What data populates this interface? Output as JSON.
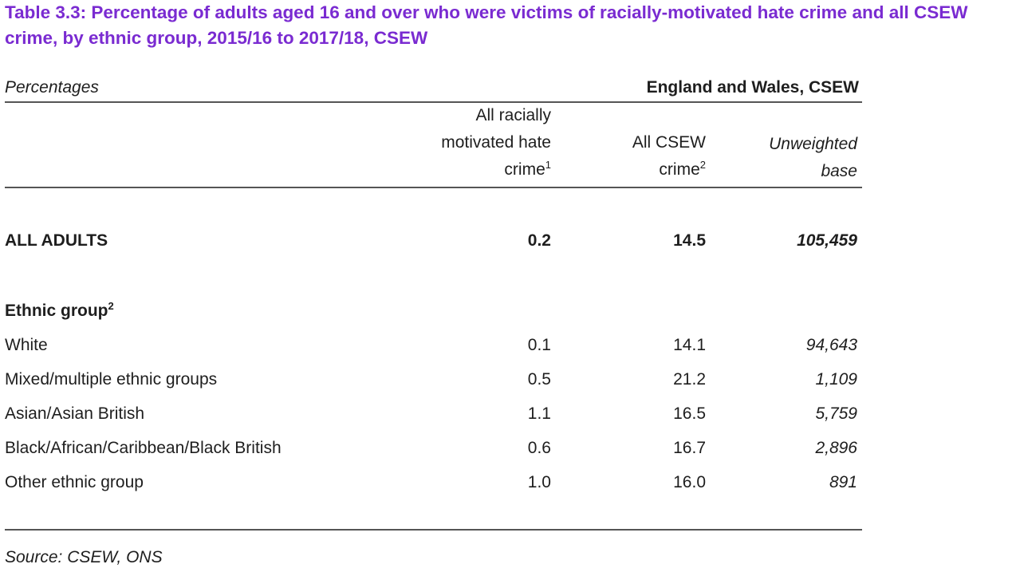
{
  "title": "Table 3.3: Percentage of adults aged 16 and over who were victims of racially-motivated hate crime and all CSEW crime, by ethnic group, 2015/16 to 2017/18, CSEW",
  "units": "Percentages",
  "coverage": "England and Wales, CSEW",
  "columns": {
    "c1": {
      "line1": "All racially",
      "line2": "motivated hate",
      "line3": "crime",
      "footnote": "1"
    },
    "c2": {
      "line1": "All CSEW",
      "line2": "crime",
      "footnote": "2"
    },
    "c3": {
      "line1": "Unweighted",
      "line2": "base"
    }
  },
  "all_adults": {
    "label": "ALL ADULTS",
    "c1": "0.2",
    "c2": "14.5",
    "c3": "105,459"
  },
  "section": {
    "label": "Ethnic group",
    "footnote": "2"
  },
  "rows": [
    {
      "label": "White",
      "c1": "0.1",
      "c2": "14.1",
      "c3": "94,643"
    },
    {
      "label": "Mixed/multiple ethnic groups",
      "c1": "0.5",
      "c2": "21.2",
      "c3": "1,109"
    },
    {
      "label": "Asian/Asian British",
      "c1": "1.1",
      "c2": "16.5",
      "c3": "5,759"
    },
    {
      "label": "Black/African/Caribbean/Black British",
      "c1": "0.6",
      "c2": "16.7",
      "c3": "2,896"
    },
    {
      "label": "Other ethnic group",
      "c1": "1.0",
      "c2": "16.0",
      "c3": "891"
    }
  ],
  "source": "Source: CSEW, ONS"
}
